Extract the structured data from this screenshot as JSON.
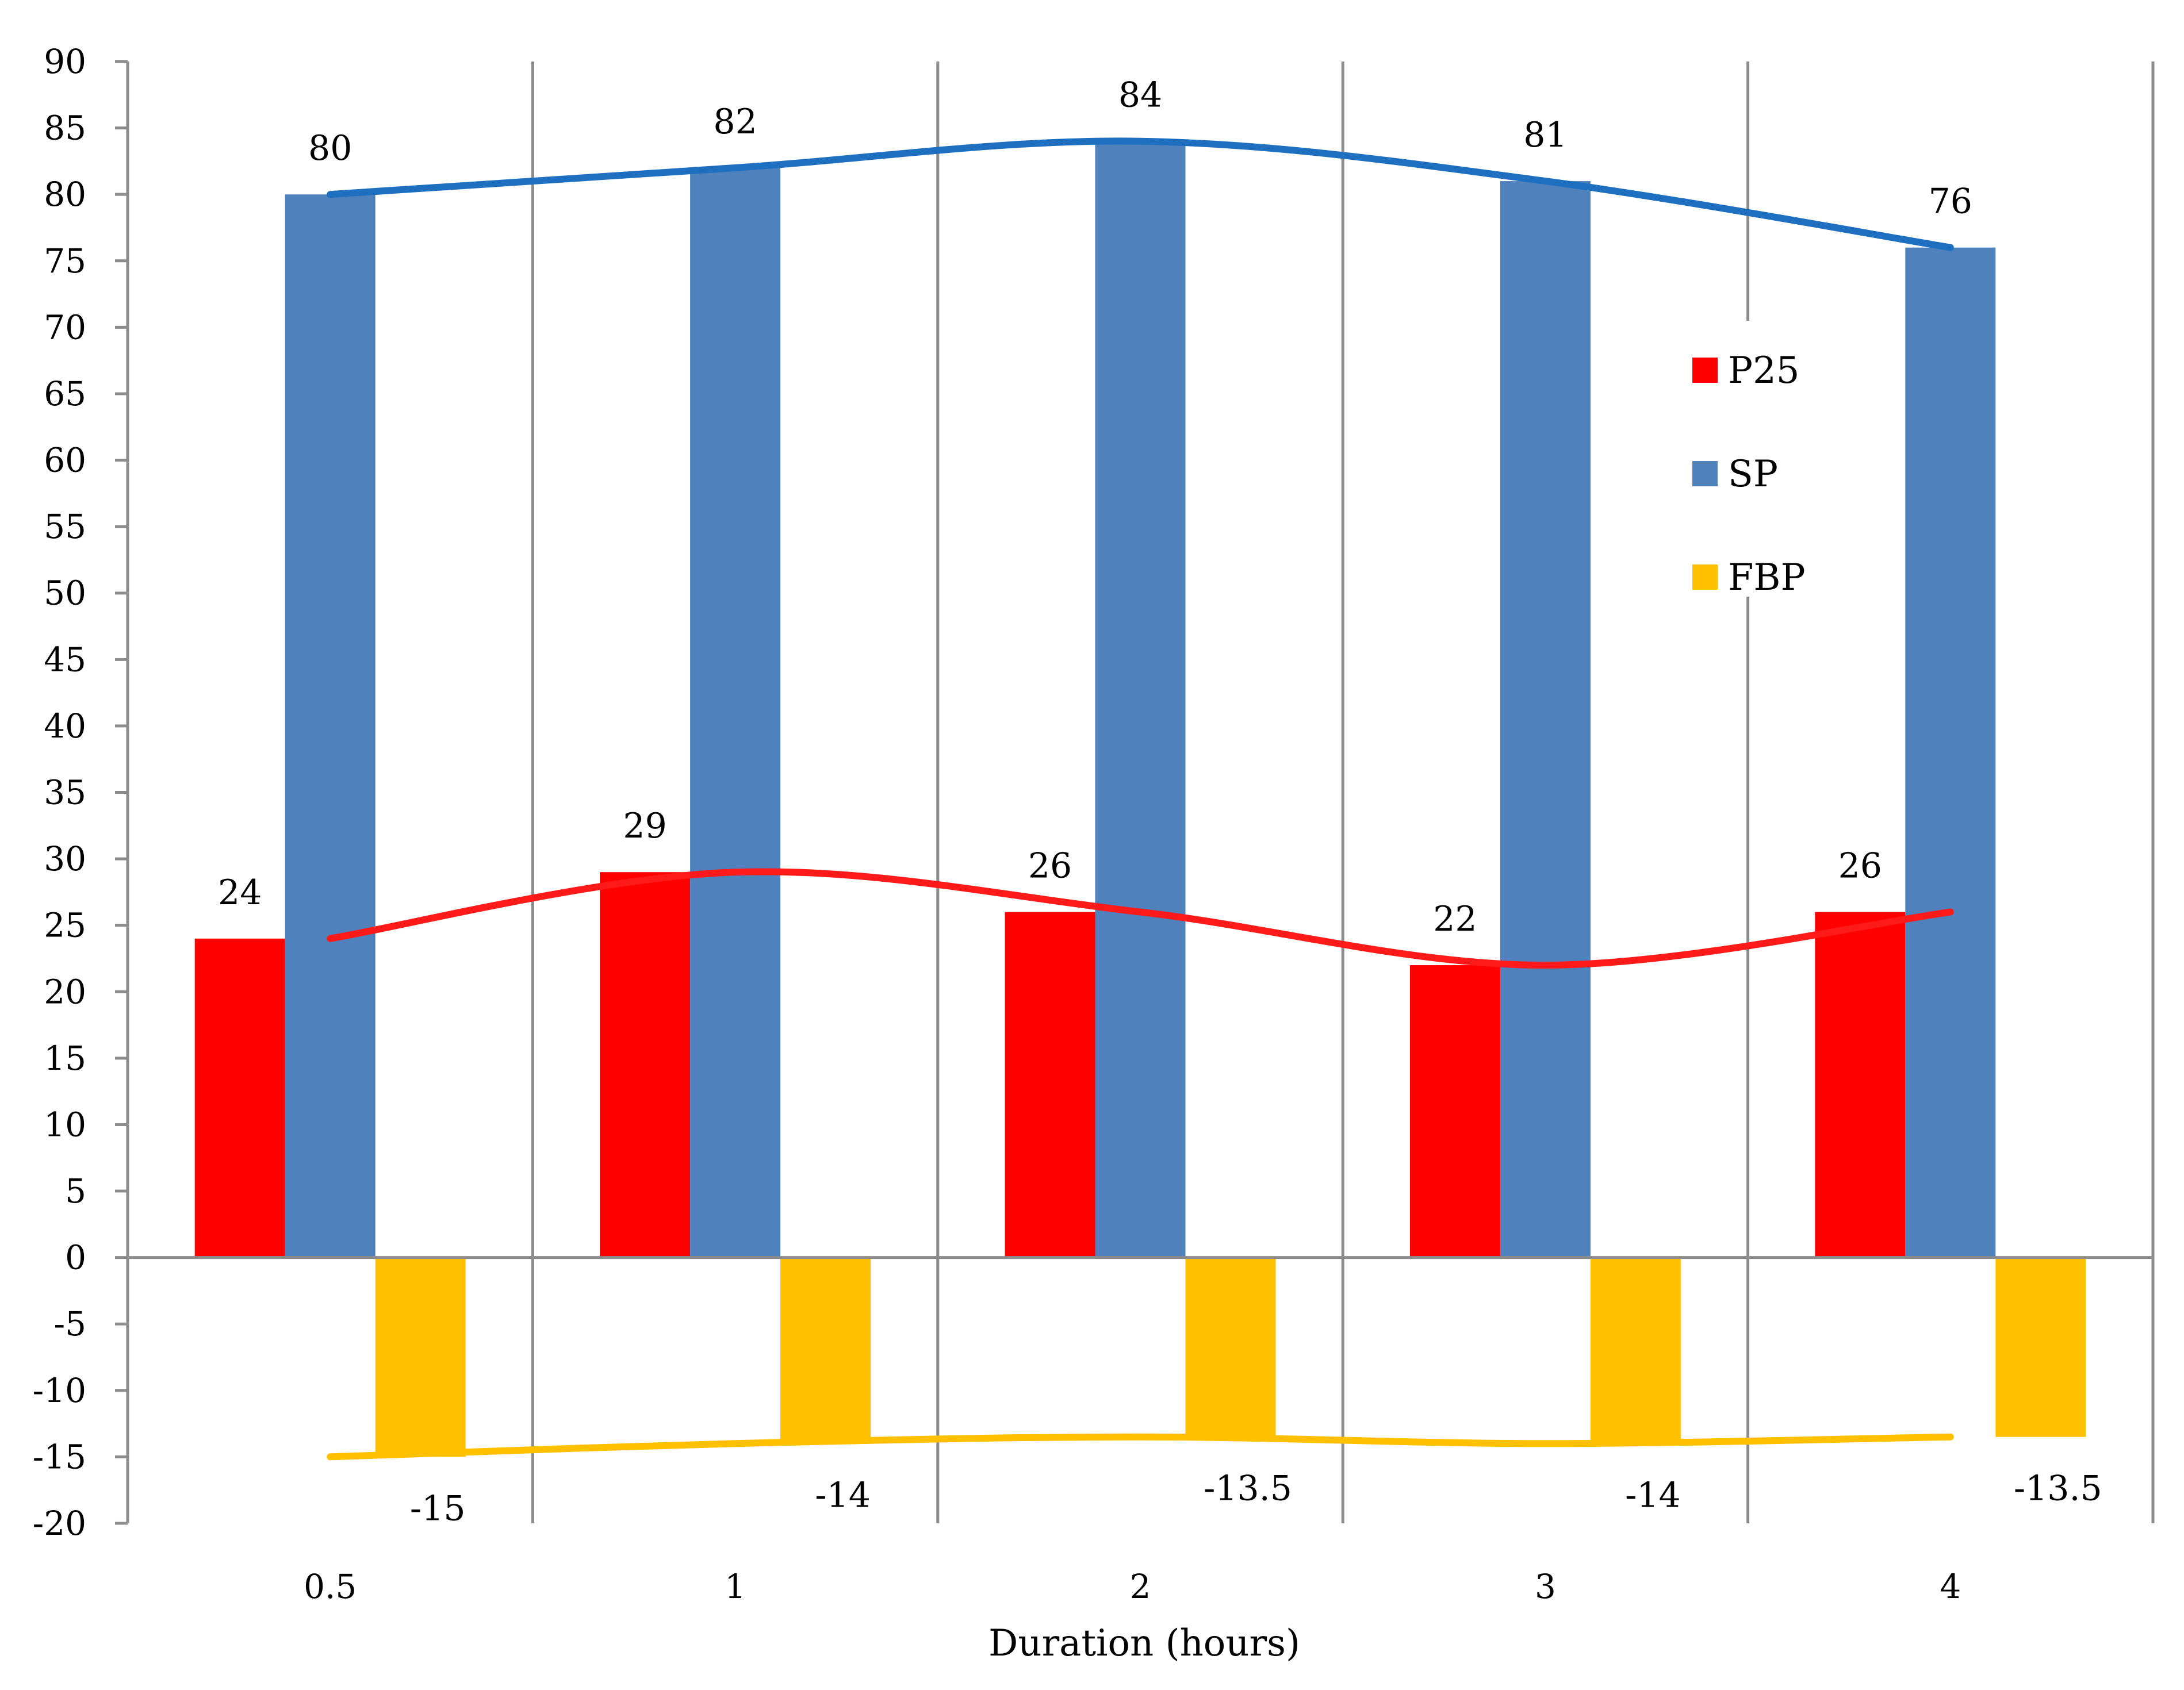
{
  "chart_data": {
    "type": "bar",
    "title": "",
    "xlabel": "Duration (hours)",
    "ylabel": "",
    "categories": [
      "0.5",
      "1",
      "2",
      "3",
      "4"
    ],
    "ylim": [
      -20,
      90
    ],
    "ytick_step": 5,
    "grid": "vertical category separators",
    "legend_position": "right",
    "series": [
      {
        "name": "P25",
        "color": "#FF0000",
        "line_color": "#FF1A1A",
        "values": [
          24,
          29,
          26,
          22,
          26
        ],
        "labels": [
          "24",
          "29",
          "26",
          "22",
          "26"
        ]
      },
      {
        "name": "SP",
        "color": "#4F81BD",
        "line_color": "#1F6FC1",
        "values": [
          80,
          82,
          84,
          81,
          76
        ],
        "labels": [
          "80",
          "82",
          "84",
          "81",
          "76"
        ]
      },
      {
        "name": "FBP",
        "color": "#FFC000",
        "line_color": "#FFC000",
        "values": [
          -15,
          -14,
          -13.5,
          -14,
          -13.5
        ],
        "labels": [
          "-15",
          "-14",
          "-13.5",
          "-14",
          "-13.5"
        ]
      }
    ]
  }
}
